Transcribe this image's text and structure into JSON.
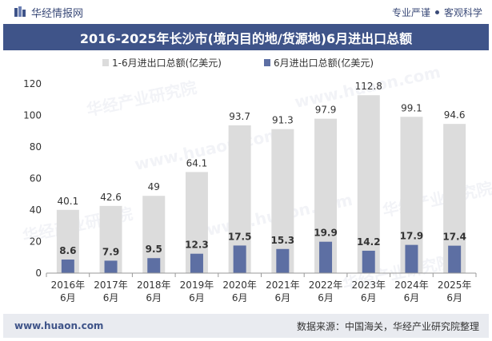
{
  "header": {
    "brand_name": "华经情报网",
    "tagline_left": "专业严谨",
    "tagline_right": "客观科学"
  },
  "title": "2016-2025年长沙市(境内目的地/货源地)6月进出口总额",
  "footer": {
    "url": "www.huaon.com",
    "source": "数据来源：中国海关，华经产业研究院整理"
  },
  "watermarks": [
    "华经产业研究院",
    "www.huaon.com"
  ],
  "colors": {
    "title_bg": "#3f5489",
    "cumulative_bar": "#dcdcdc",
    "monthly_bar": "#5d6fa3",
    "axis": "#999999",
    "footer_bg": "#e9ebf0"
  },
  "chart_data": {
    "type": "bar",
    "categories": [
      "2016年\n6月",
      "2017年\n6月",
      "2018年\n6月",
      "2019年\n6月",
      "2020年\n6月",
      "2021年\n6月",
      "2022年\n6月",
      "2023年\n6月",
      "2024年\n6月",
      "2025年\n6月"
    ],
    "series": [
      {
        "name": "1-6月进出口总额(亿美元)",
        "values": [
          40.1,
          42.6,
          49,
          64.1,
          93.7,
          91.3,
          97.9,
          112.8,
          99.1,
          94.6
        ],
        "labels": [
          "40.1",
          "42.6",
          "49",
          "64.1",
          "93.7",
          "91.3",
          "97.9",
          "112.8",
          "99.1",
          "94.6"
        ]
      },
      {
        "name": "6月进出口总额(亿美元)",
        "values": [
          8.6,
          7.9,
          9.5,
          12.3,
          17.5,
          15.3,
          19.9,
          14.2,
          17.9,
          17.4
        ],
        "labels": [
          "8.6",
          "7.9",
          "9.5",
          "12.3",
          "17.5",
          "15.3",
          "19.9",
          "14.2",
          "17.9",
          "17.4"
        ]
      }
    ],
    "ylim": [
      0,
      120
    ],
    "yticks": [
      "0",
      "20",
      "40",
      "60",
      "80",
      "100",
      "120"
    ],
    "grid": false,
    "legend_position": "top-center",
    "bar_layout": "overlapped"
  }
}
